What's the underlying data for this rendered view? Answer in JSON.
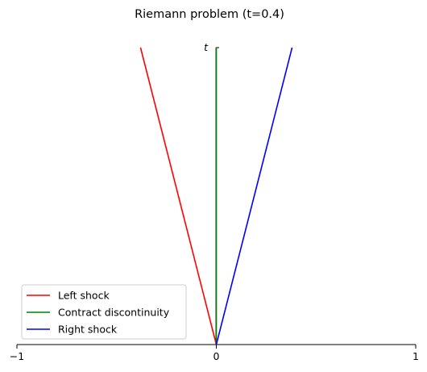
{
  "chart_data": {
    "type": "line",
    "title": "Riemann problem (t=0.4)",
    "xlabel": "",
    "ylabel": "t",
    "xlim": [
      -1,
      1
    ],
    "ylim": [
      0,
      0.4
    ],
    "x_ticks": [
      "−1",
      "0",
      "1"
    ],
    "legend_placement": "lower-left",
    "grid": false,
    "series": [
      {
        "name": "Left shock",
        "color": "#ff0000",
        "x": [
          0,
          -0.38
        ],
        "y": [
          0,
          0.4
        ]
      },
      {
        "name": "Contract discontinuity",
        "color": "#008000",
        "x": [
          0,
          0
        ],
        "y": [
          0,
          0.4
        ]
      },
      {
        "name": "Right shock",
        "color": "#0000ff",
        "x": [
          0,
          0.38
        ],
        "y": [
          0,
          0.4
        ]
      }
    ]
  }
}
